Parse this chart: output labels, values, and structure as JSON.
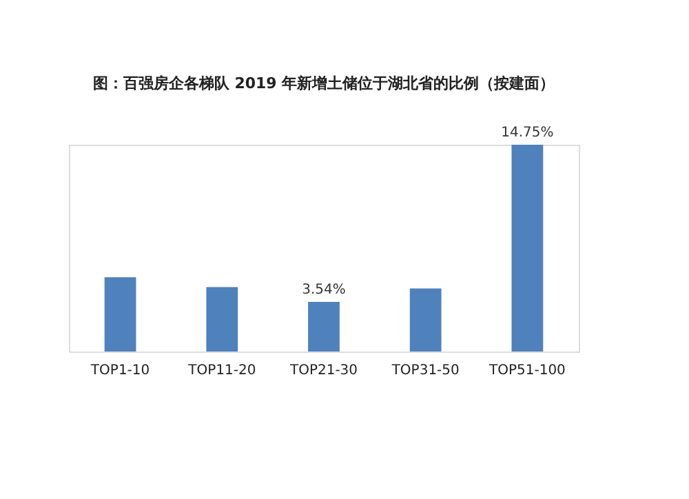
{
  "chart_data": {
    "type": "bar",
    "title": "图：百强房企各梯队 2019 年新增土储位于湖北省的比例（按建面）",
    "categories": [
      "TOP1-10",
      "TOP11-20",
      "TOP21-30",
      "TOP31-50",
      "TOP51-100"
    ],
    "values": [
      5.3,
      4.6,
      3.54,
      4.5,
      14.75
    ],
    "value_labels": [
      null,
      null,
      "3.54%",
      null,
      "14.75%"
    ],
    "color": "#4f81bd",
    "ylim": [
      0,
      14.75
    ]
  }
}
